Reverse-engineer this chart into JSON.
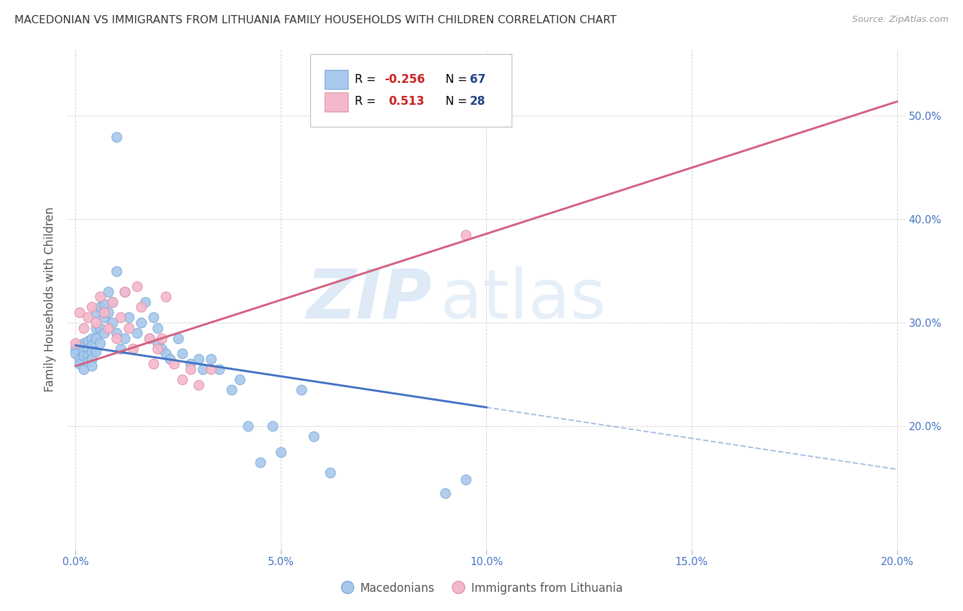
{
  "title": "MACEDONIAN VS IMMIGRANTS FROM LITHUANIA FAMILY HOUSEHOLDS WITH CHILDREN CORRELATION CHART",
  "source": "Source: ZipAtlas.com",
  "ylabel": "Family Households with Children",
  "xlim": [
    -0.002,
    0.202
  ],
  "ylim": [
    0.08,
    0.565
  ],
  "xtick_vals": [
    0.0,
    0.05,
    0.1,
    0.15,
    0.2
  ],
  "ytick_vals": [
    0.2,
    0.3,
    0.4,
    0.5
  ],
  "blue_scatter_x": [
    0.0,
    0.0,
    0.001,
    0.001,
    0.001,
    0.002,
    0.002,
    0.002,
    0.002,
    0.003,
    0.003,
    0.003,
    0.003,
    0.004,
    0.004,
    0.004,
    0.004,
    0.004,
    0.005,
    0.005,
    0.005,
    0.005,
    0.006,
    0.006,
    0.006,
    0.007,
    0.007,
    0.007,
    0.008,
    0.008,
    0.009,
    0.009,
    0.01,
    0.01,
    0.011,
    0.012,
    0.012,
    0.013,
    0.015,
    0.016,
    0.017,
    0.018,
    0.019,
    0.02,
    0.02,
    0.021,
    0.022,
    0.023,
    0.025,
    0.026,
    0.028,
    0.03,
    0.031,
    0.033,
    0.035,
    0.038,
    0.04,
    0.042,
    0.045,
    0.048,
    0.05,
    0.055,
    0.058,
    0.062,
    0.09,
    0.095,
    0.01
  ],
  "blue_scatter_y": [
    0.275,
    0.27,
    0.278,
    0.265,
    0.26,
    0.28,
    0.272,
    0.268,
    0.255,
    0.282,
    0.275,
    0.268,
    0.262,
    0.285,
    0.278,
    0.272,
    0.265,
    0.258,
    0.31,
    0.295,
    0.285,
    0.272,
    0.315,
    0.295,
    0.28,
    0.318,
    0.305,
    0.29,
    0.33,
    0.31,
    0.32,
    0.3,
    0.35,
    0.29,
    0.275,
    0.33,
    0.285,
    0.305,
    0.29,
    0.3,
    0.32,
    0.285,
    0.305,
    0.295,
    0.28,
    0.275,
    0.27,
    0.265,
    0.285,
    0.27,
    0.26,
    0.265,
    0.255,
    0.265,
    0.255,
    0.235,
    0.245,
    0.2,
    0.165,
    0.2,
    0.175,
    0.235,
    0.19,
    0.155,
    0.135,
    0.148,
    0.48
  ],
  "pink_scatter_x": [
    0.0,
    0.001,
    0.002,
    0.003,
    0.004,
    0.005,
    0.006,
    0.007,
    0.008,
    0.009,
    0.01,
    0.011,
    0.012,
    0.013,
    0.014,
    0.015,
    0.016,
    0.018,
    0.019,
    0.02,
    0.021,
    0.022,
    0.024,
    0.026,
    0.028,
    0.03,
    0.033,
    0.095
  ],
  "pink_scatter_y": [
    0.28,
    0.31,
    0.295,
    0.305,
    0.315,
    0.3,
    0.325,
    0.31,
    0.295,
    0.32,
    0.285,
    0.305,
    0.33,
    0.295,
    0.275,
    0.335,
    0.315,
    0.285,
    0.26,
    0.275,
    0.285,
    0.325,
    0.26,
    0.245,
    0.255,
    0.24,
    0.255,
    0.385
  ],
  "blue_line_x0": 0.0,
  "blue_line_y0": 0.278,
  "blue_line_slope": -0.6,
  "blue_line_solid_end": 0.1,
  "pink_line_x0": 0.0,
  "pink_line_y0": 0.258,
  "pink_line_slope": 1.28,
  "pink_line_end": 0.2,
  "blue_line_color": "#4472c4",
  "pink_line_color": "#d46080",
  "blue_dot_color": "#a8c8ec",
  "blue_dot_edge": "#7aaad8",
  "pink_dot_color": "#f4b8cc",
  "pink_dot_edge": "#e090a8",
  "background_color": "#ffffff",
  "grid_color": "#c8c8c8",
  "watermark_zip_color": "#c8ddf0",
  "watermark_atlas_color": "#c8ddf0",
  "legend_r1": "R = -0.256",
  "legend_n1": "N = 67",
  "legend_r2": "R =  0.513",
  "legend_n2": "N = 28",
  "legend_r1_color": "#cc2222",
  "legend_n1_color": "#224488",
  "legend_r2_color": "#cc2222",
  "legend_n2_color": "#224488",
  "title_color": "#333333",
  "source_color": "#999999",
  "axis_label_color": "#555555",
  "tick_color": "#4472c4"
}
